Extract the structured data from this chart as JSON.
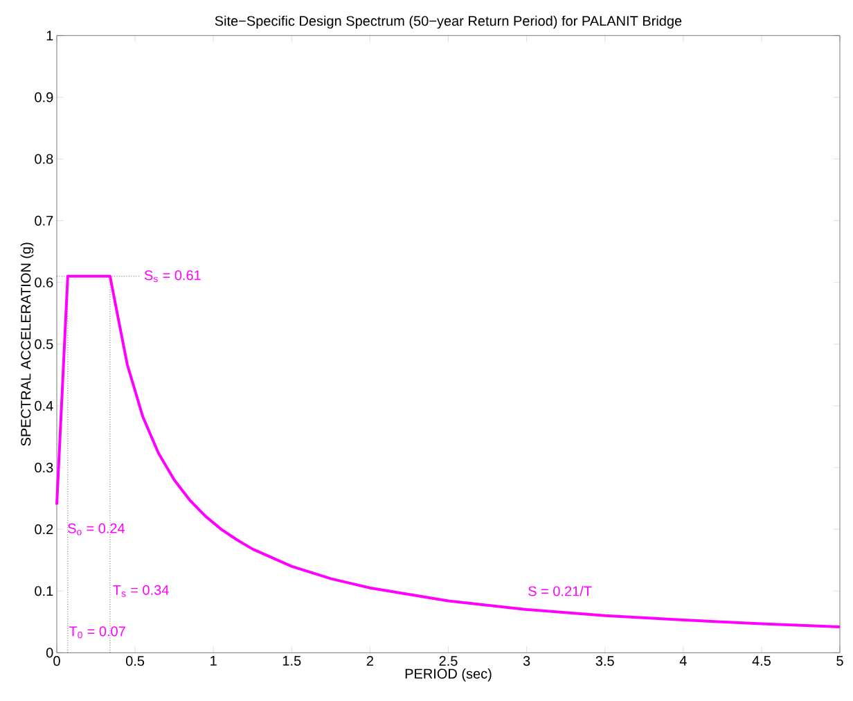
{
  "chart_data": {
    "type": "line",
    "title": "Site−Specific Design Spectrum (50−year Return Period) for PALANIT Bridge",
    "xlabel": "PERIOD  (sec)",
    "ylabel": "SPECTRAL ACCELERATION  (g)",
    "series": [
      {
        "color": "#ff00ff",
        "x": [
          0,
          0.07,
          0.34,
          0.45,
          0.55,
          0.65,
          0.75,
          0.85,
          0.95,
          1.05,
          1.15,
          1.25,
          1.5,
          1.75,
          2,
          2.5,
          3,
          3.5,
          4,
          4.5,
          5
        ],
        "values": [
          0.24,
          0.61,
          0.61,
          0.467,
          0.382,
          0.323,
          0.28,
          0.247,
          0.221,
          0.2,
          0.183,
          0.168,
          0.14,
          0.12,
          0.105,
          0.084,
          0.07,
          0.06,
          0.053,
          0.047,
          0.042
        ]
      }
    ],
    "xlim": [
      0,
      5
    ],
    "ylim": [
      0,
      1
    ],
    "xticks": [
      0,
      0.5,
      1,
      1.5,
      2,
      2.5,
      3,
      3.5,
      4,
      4.5,
      5
    ],
    "yticks": [
      0,
      0.1,
      0.2,
      0.3,
      0.4,
      0.5,
      0.6,
      0.7,
      0.8,
      0.9,
      1
    ],
    "grid": false,
    "marker": "none",
    "line_style": "solid",
    "ref_lines": [
      {
        "axis": "x",
        "value": 0.07,
        "color": "#000000",
        "line_style": "dotted"
      },
      {
        "axis": "x",
        "value": 0.34,
        "color": "#000000",
        "line_style": "dotted"
      },
      {
        "axis": "y",
        "value": 0.61,
        "color": "#000000",
        "line_style": "dotted"
      }
    ],
    "annotations": [
      "S$_{s}$ = 0.61",
      {
        "text": "S$_{o}$ = 0.24",
        "x": 0.06,
        "y": 0.2
      },
      {
        "text": "T$_{s}$ = 0.34",
        "x": 0.35,
        "y": 0.1
      },
      {
        "text": "T$_{0}$ = 0.07",
        "x": 0.07,
        "y": 0.033
      },
      "S = 0.21/T"
    ]
  }
}
